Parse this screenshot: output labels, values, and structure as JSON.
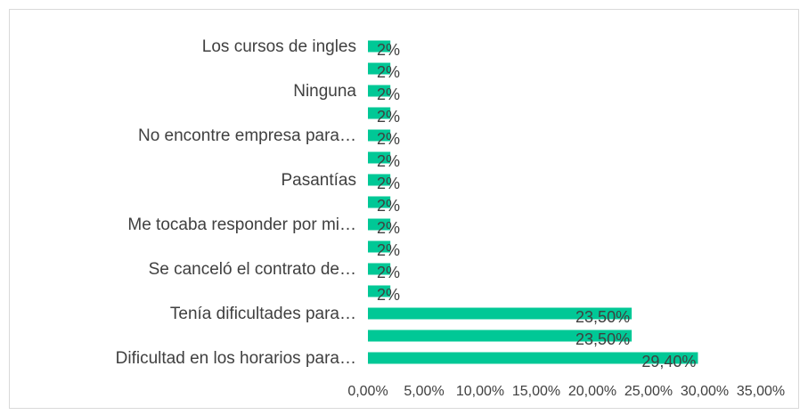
{
  "chart_data": {
    "type": "bar",
    "orientation": "horizontal",
    "categories": [
      "Los cursos de ingles",
      null,
      "Ninguna",
      null,
      "No encontre empresa para…",
      null,
      "Pasantías",
      null,
      "Me tocaba responder por mi…",
      null,
      "Se canceló el contrato de…",
      null,
      "Tenía dificultades para…",
      null,
      "Dificultad en los horarios para…"
    ],
    "values": [
      2,
      2,
      2,
      2,
      2,
      2,
      2,
      2,
      2,
      2,
      2,
      2,
      23.5,
      23.5,
      29.4
    ],
    "value_labels": [
      "2%",
      "2%",
      "2%",
      "2%",
      "2%",
      "2%",
      "2%",
      "2%",
      "2%",
      "2%",
      "2%",
      "2%",
      "23,50%",
      "23,50%",
      "29,40%"
    ],
    "color": "#00c896",
    "xlim": [
      0,
      35
    ],
    "xticks": [
      {
        "value": 0,
        "label": "0,00%"
      },
      {
        "value": 5,
        "label": "5,00%"
      },
      {
        "value": 10,
        "label": "10,00%"
      },
      {
        "value": 15,
        "label": "15,00%"
      },
      {
        "value": 20,
        "label": "20,00%"
      },
      {
        "value": 25,
        "label": "25,00%"
      },
      {
        "value": 30,
        "label": "30,00%"
      },
      {
        "value": 35,
        "label": "35,00%"
      }
    ],
    "grid": false
  }
}
